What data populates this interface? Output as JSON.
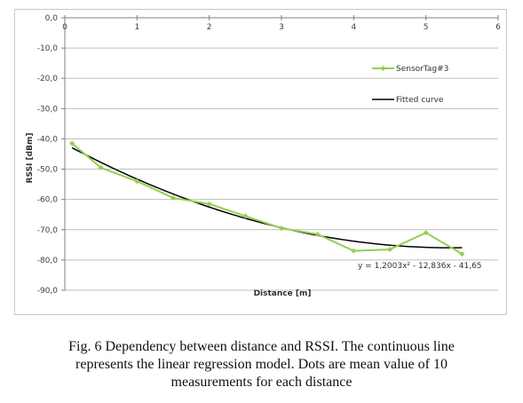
{
  "chart_data": {
    "type": "line",
    "xlabel": "Distance [m]",
    "ylabel": "RSSI [dBm]",
    "xlim": [
      0,
      6
    ],
    "ylim": [
      -90,
      0
    ],
    "x_ticks": [
      0,
      1,
      2,
      3,
      4,
      5,
      6
    ],
    "y_ticks": [
      0,
      -10,
      -20,
      -30,
      -40,
      -50,
      -60,
      -70,
      -80,
      -90
    ],
    "y_tick_labels": [
      "0,0",
      "-10,0",
      "-20,0",
      "-30,0",
      "-40,0",
      "-50,0",
      "-60,0",
      "-70,0",
      "-80,0",
      "-90,0"
    ],
    "x_axis_position": "top",
    "grid": "horizontal",
    "legend_position": "right",
    "series": [
      {
        "name": "SensorTag#3",
        "color": "#92d050",
        "marker": "diamond",
        "x": [
          0.1,
          0.5,
          1.0,
          1.5,
          2.0,
          2.5,
          3.0,
          3.5,
          4.0,
          4.5,
          5.0,
          5.5
        ],
        "y": [
          -41.5,
          -49.5,
          -54.0,
          -59.5,
          -61.5,
          -65.5,
          -69.5,
          -71.5,
          -77.0,
          -76.5,
          -71.0,
          -78.0
        ]
      },
      {
        "name": "Fitted curve",
        "color": "#000000",
        "fit": {
          "a": 1.2003,
          "b": -12.836,
          "c": -41.65
        },
        "x_range": [
          0.1,
          5.5
        ]
      }
    ],
    "annotation": "y = 1,2003x² - 12,836x - 41,65"
  },
  "caption": [
    "Fig.  6 Dependency between distance and RSSI. The continuous line",
    "represents the linear regression model. Dots are mean value of 10",
    "measurements for each distance"
  ]
}
